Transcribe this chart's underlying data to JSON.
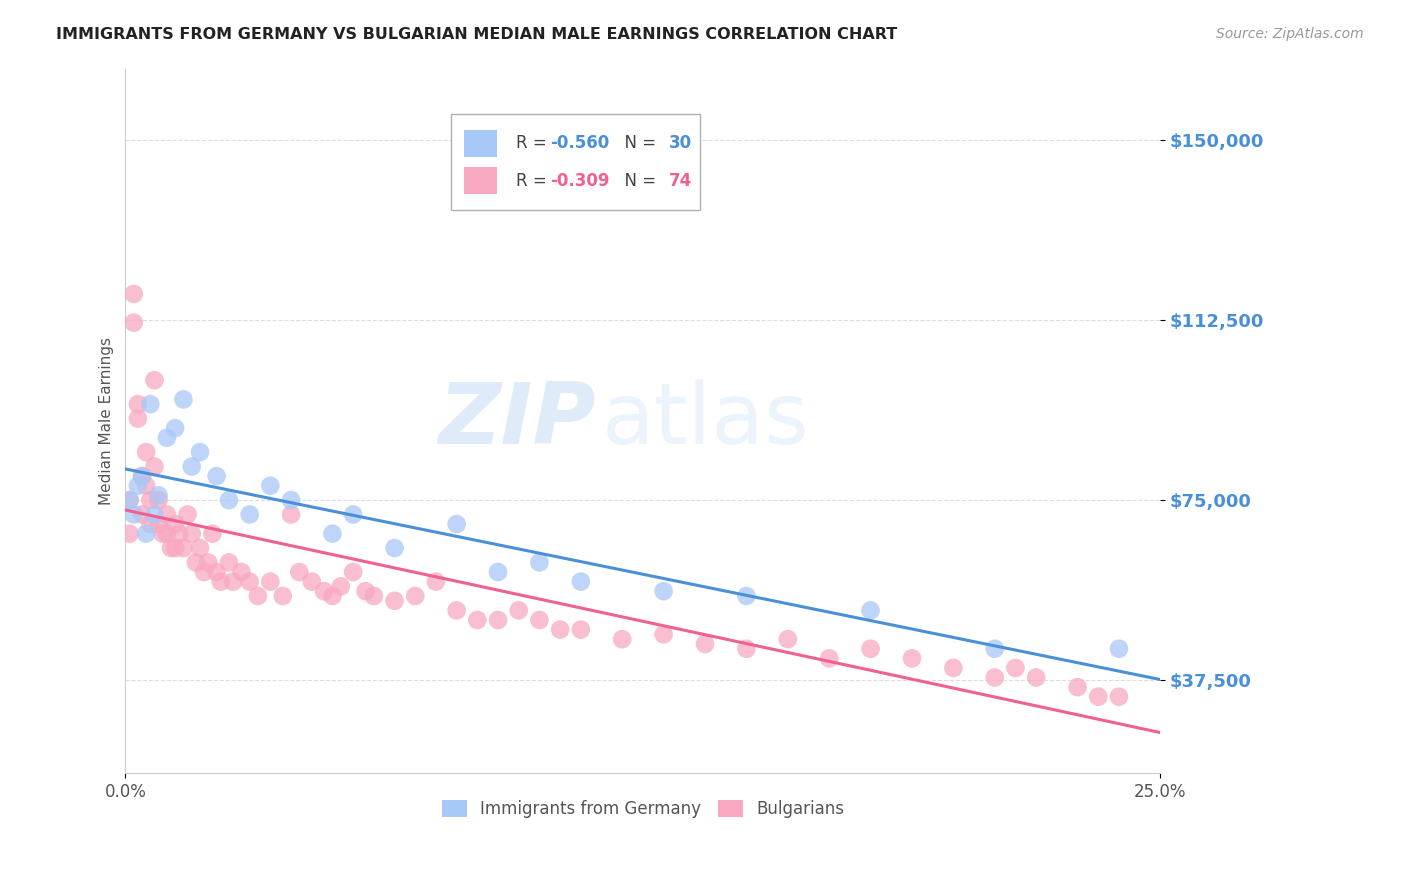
{
  "title": "IMMIGRANTS FROM GERMANY VS BULGARIAN MEDIAN MALE EARNINGS CORRELATION CHART",
  "source": "Source: ZipAtlas.com",
  "ylabel": "Median Male Earnings",
  "yticks": [
    37500,
    75000,
    112500,
    150000
  ],
  "ytick_labels": [
    "$37,500",
    "$75,000",
    "$112,500",
    "$150,000"
  ],
  "xlim": [
    0.0,
    0.25
  ],
  "ylim": [
    18000,
    165000
  ],
  "watermark_zip": "ZIP",
  "watermark_atlas": "atlas",
  "germany_R": -0.56,
  "germany_N": 30,
  "bulgaria_R": -0.309,
  "bulgaria_N": 74,
  "germany_color": "#a8c8f8",
  "bulgaria_color": "#f8a8c0",
  "germany_line_color": "#4a90d9",
  "bulgaria_line_color": "#f06090",
  "germany_x": [
    0.001,
    0.002,
    0.003,
    0.004,
    0.005,
    0.006,
    0.007,
    0.008,
    0.01,
    0.012,
    0.014,
    0.016,
    0.018,
    0.022,
    0.025,
    0.03,
    0.035,
    0.04,
    0.05,
    0.055,
    0.065,
    0.08,
    0.09,
    0.1,
    0.11,
    0.13,
    0.15,
    0.18,
    0.21,
    0.24
  ],
  "germany_y": [
    75000,
    72000,
    78000,
    80000,
    68000,
    95000,
    72000,
    76000,
    88000,
    90000,
    96000,
    82000,
    85000,
    80000,
    75000,
    72000,
    78000,
    75000,
    68000,
    72000,
    65000,
    70000,
    60000,
    62000,
    58000,
    56000,
    55000,
    52000,
    44000,
    44000
  ],
  "bulgaria_x": [
    0.001,
    0.001,
    0.002,
    0.002,
    0.003,
    0.003,
    0.004,
    0.004,
    0.005,
    0.005,
    0.006,
    0.006,
    0.007,
    0.007,
    0.008,
    0.008,
    0.009,
    0.01,
    0.01,
    0.011,
    0.012,
    0.012,
    0.013,
    0.014,
    0.015,
    0.016,
    0.017,
    0.018,
    0.019,
    0.02,
    0.021,
    0.022,
    0.023,
    0.025,
    0.026,
    0.028,
    0.03,
    0.032,
    0.035,
    0.038,
    0.04,
    0.042,
    0.045,
    0.048,
    0.05,
    0.052,
    0.055,
    0.058,
    0.06,
    0.065,
    0.07,
    0.075,
    0.08,
    0.085,
    0.09,
    0.095,
    0.1,
    0.105,
    0.11,
    0.12,
    0.13,
    0.14,
    0.15,
    0.16,
    0.17,
    0.18,
    0.19,
    0.2,
    0.21,
    0.215,
    0.22,
    0.23,
    0.235,
    0.24
  ],
  "bulgaria_y": [
    75000,
    68000,
    118000,
    112000,
    95000,
    92000,
    80000,
    72000,
    85000,
    78000,
    75000,
    70000,
    100000,
    82000,
    75000,
    70000,
    68000,
    72000,
    68000,
    65000,
    70000,
    65000,
    68000,
    65000,
    72000,
    68000,
    62000,
    65000,
    60000,
    62000,
    68000,
    60000,
    58000,
    62000,
    58000,
    60000,
    58000,
    55000,
    58000,
    55000,
    72000,
    60000,
    58000,
    56000,
    55000,
    57000,
    60000,
    56000,
    55000,
    54000,
    55000,
    58000,
    52000,
    50000,
    50000,
    52000,
    50000,
    48000,
    48000,
    46000,
    47000,
    45000,
    44000,
    46000,
    42000,
    44000,
    42000,
    40000,
    38000,
    40000,
    38000,
    36000,
    34000,
    34000
  ],
  "background_color": "#ffffff",
  "grid_color": "#dddddd",
  "title_color": "#222222",
  "axis_label_color": "#555555",
  "ytick_color": "#4a90d9",
  "xtick_color": "#555555"
}
